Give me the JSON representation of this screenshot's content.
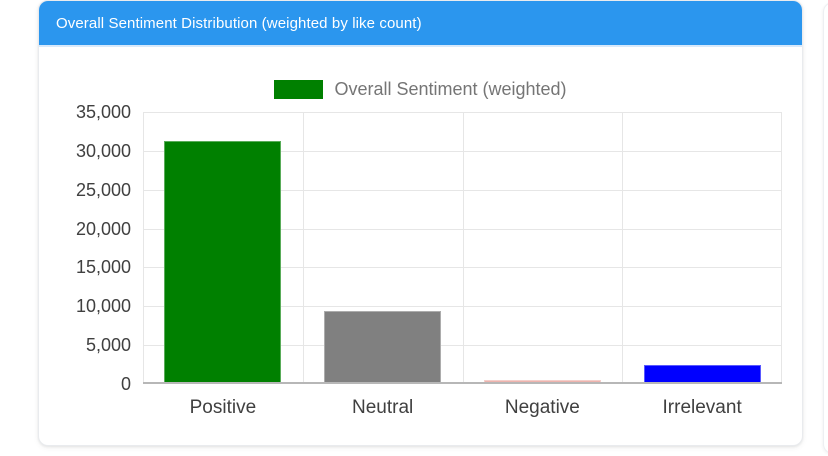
{
  "header": {
    "title": "Overall Sentiment Distribution (weighted by like count)"
  },
  "chart_data": {
    "type": "bar",
    "title": "Overall Sentiment Distribution (weighted by like count)",
    "legend": {
      "label": "Overall Sentiment (weighted)",
      "position": "top-center",
      "swatch_color": "#008000"
    },
    "categories": [
      "Positive",
      "Neutral",
      "Negative",
      "Irrelevant"
    ],
    "values": [
      31000,
      9100,
      200,
      2250
    ],
    "bar_colors": [
      "#008000",
      "#808080",
      "#eeb4ae",
      "#0000ff"
    ],
    "xlabel": "",
    "ylabel": "",
    "ylim": [
      0,
      35000
    ],
    "ytick_step": 5000,
    "ytick_labels": [
      "0",
      "5,000",
      "10,000",
      "15,000",
      "20,000",
      "25,000",
      "30,000",
      "35,000"
    ],
    "grid": true
  },
  "colors": {
    "header_bg": "#2b96ee",
    "header_text": "#ffffff",
    "card_bg": "#ffffff",
    "card_border": "#e9ebee",
    "gridline": "#e6e6e6",
    "axis_line": "#b7b7b7",
    "axis_text": "#404040",
    "legend_text": "#757575"
  }
}
